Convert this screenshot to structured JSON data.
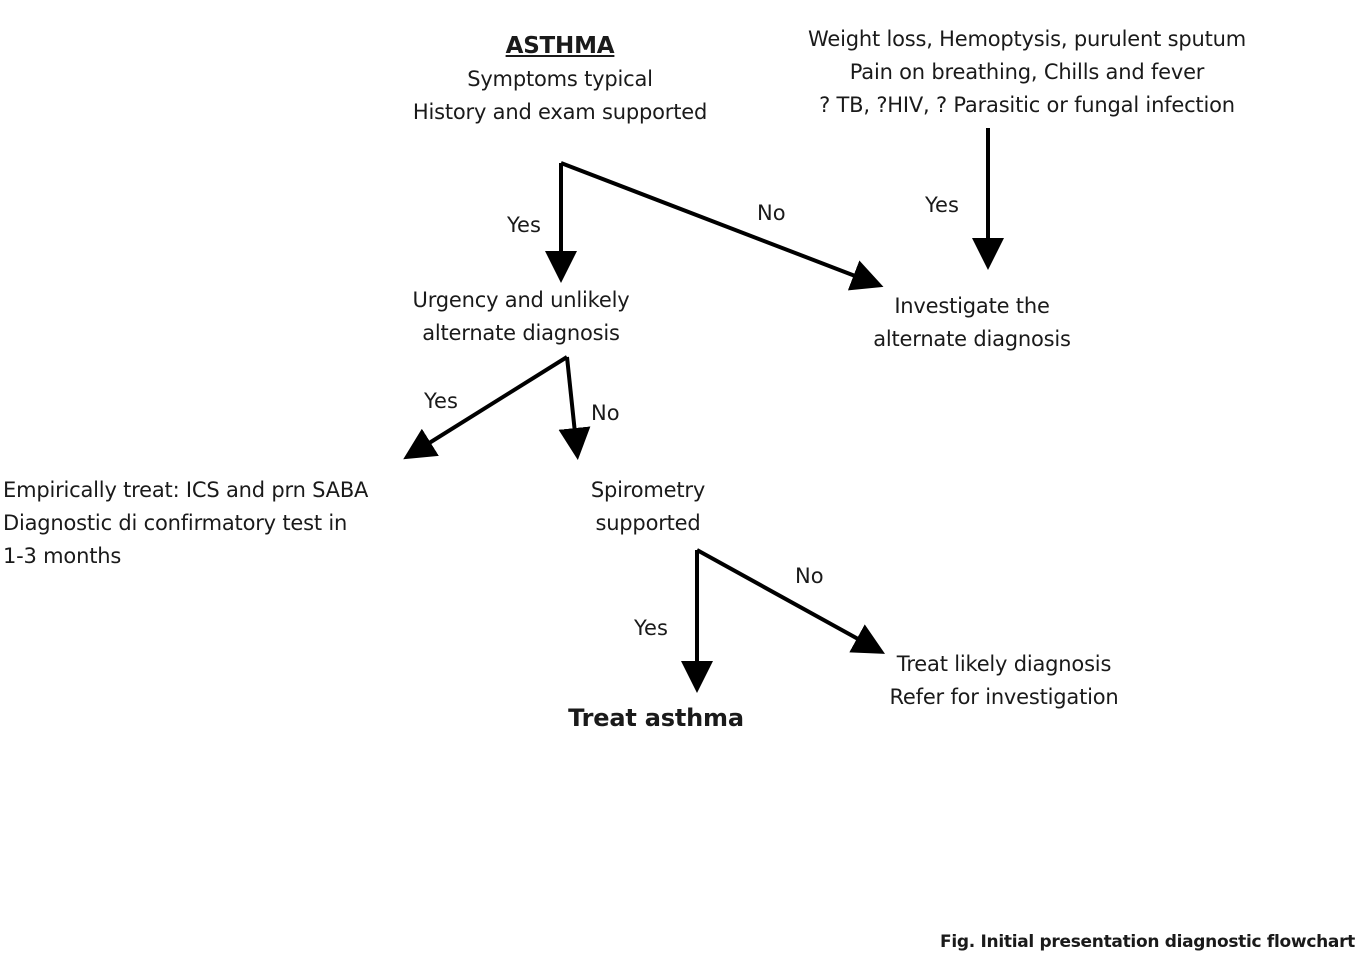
{
  "nodes": {
    "asthma": {
      "title": "ASTHMA",
      "line1": "Symptoms typical",
      "line2": "History and exam supported"
    },
    "red_flags": {
      "line1": "Weight loss, Hemoptysis, purulent sputum",
      "line2": "Pain on breathing, Chills and fever",
      "line3": "? TB, ?HIV, ? Parasitic or fungal infection"
    },
    "urgency": {
      "line1": "Urgency and unlikely",
      "line2": "alternate diagnosis"
    },
    "investigate": {
      "line1": "Investigate the",
      "line2": "alternate diagnosis"
    },
    "empirical": {
      "line1": "Empirically treat: ICS and prn SABA",
      "line2": "Diagnostic di confirmatory  test in",
      "line3": "1-3 months"
    },
    "spirometry": {
      "line1": "Spirometry",
      "line2": "supported"
    },
    "treat_asthma": {
      "label": "Treat asthma"
    },
    "treat_likely": {
      "line1": "Treat likely diagnosis",
      "line2": "Refer for investigation"
    }
  },
  "edges": {
    "asthma_yes": "Yes",
    "asthma_no": "No",
    "red_flags_yes": "Yes",
    "urgency_yes": "Yes",
    "urgency_no": "No",
    "spirometry_yes": "Yes",
    "spirometry_no": "No"
  },
  "caption": "Fig. Initial presentation diagnostic flowchart",
  "colors": {
    "arrow": "#000000",
    "text": "#1a1a1a"
  }
}
